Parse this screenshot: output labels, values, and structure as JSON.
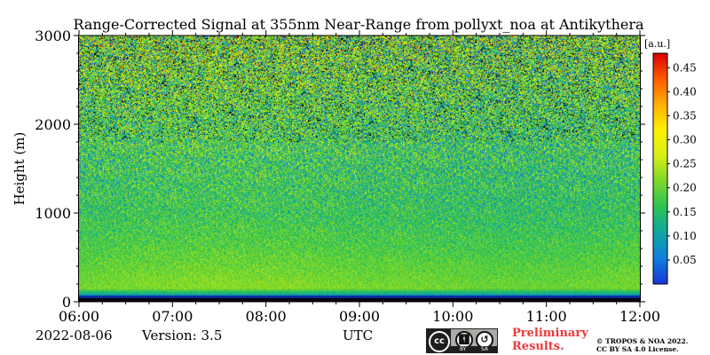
{
  "chart_data": {
    "type": "heatmap",
    "title": "Range-Corrected Signal at 355nm Near-Range from pollyxt_noa at Antikythera",
    "ylabel": "Height (m)",
    "xlabel": "UTC",
    "x_ticks": [
      "06:00",
      "07:00",
      "08:00",
      "09:00",
      "10:00",
      "11:00",
      "12:00"
    ],
    "x_range": [
      "06:00",
      "12:00"
    ],
    "y_ticks": [
      0,
      1000,
      2000,
      3000
    ],
    "ylim": [
      0,
      3000
    ],
    "colorbar": {
      "unit": "[a.u.]",
      "ticks": [
        0.05,
        0.1,
        0.15,
        0.2,
        0.25,
        0.3,
        0.35,
        0.4,
        0.45
      ],
      "tick_labels": [
        "0.05",
        "0.10",
        "0.15",
        "0.20",
        "0.25",
        "0.30",
        "0.35",
        "0.40",
        "0.45"
      ],
      "range": [
        0,
        0.48
      ],
      "colormap": [
        "#1a35d8",
        "#0f7fde",
        "#11a5a0",
        "#2cc255",
        "#7ad82a",
        "#d8ee16",
        "#fff200",
        "#ffb000",
        "#ff5a00",
        "#d80000"
      ]
    },
    "field_description": {
      "mean_signal_by_height": [
        {
          "height": 0,
          "value": 0.0
        },
        {
          "height": 80,
          "value": 0.1
        },
        {
          "height": 150,
          "value": 0.21
        },
        {
          "height": 300,
          "value": 0.2
        },
        {
          "height": 600,
          "value": 0.18
        },
        {
          "height": 1000,
          "value": 0.16
        },
        {
          "height": 1500,
          "value": 0.16
        },
        {
          "height": 2000,
          "value": 0.17
        },
        {
          "height": 2500,
          "value": 0.19
        },
        {
          "height": 3000,
          "value": 0.2
        }
      ],
      "near_ground_dark_band_height": 70
    }
  },
  "footer": {
    "date": "2022-08-06",
    "version": "Version: 3.5",
    "time_axis_label": "UTC",
    "license_badge": {
      "cc": "cc",
      "by": "BY",
      "sa": "SA"
    },
    "preliminary_line1": "Preliminary",
    "preliminary_line2": "Results.",
    "copyright_line1": "© TROPOS & NOA 2022.",
    "copyright_line2": "CC BY SA 4.0 License."
  }
}
